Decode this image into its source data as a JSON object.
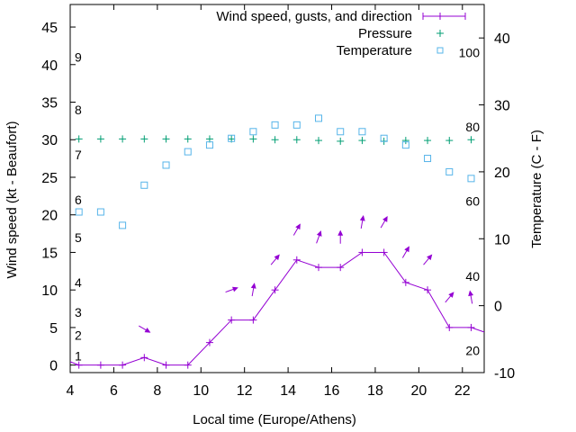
{
  "chart_data": {
    "type": "line",
    "xlabel": "Local time (Europe/Athens)",
    "ylabel": "Wind speed (kt - Beaufort)",
    "y2label": "Temperature (C - F)",
    "xlim": [
      4,
      23
    ],
    "ylim": [
      -1,
      48
    ],
    "y2lim": [
      -10,
      45
    ],
    "x_ticks": [
      4,
      6,
      8,
      10,
      12,
      14,
      16,
      18,
      20,
      22
    ],
    "y_ticks": [
      0,
      5,
      10,
      15,
      20,
      25,
      30,
      35,
      40,
      45
    ],
    "y2_ticks": [
      -10,
      0,
      10,
      20,
      30,
      40
    ],
    "beaufort_labels": [
      {
        "label": "1",
        "kt": 1.2
      },
      {
        "label": "2",
        "kt": 4
      },
      {
        "label": "3",
        "kt": 7
      },
      {
        "label": "4",
        "kt": 11
      },
      {
        "label": "5",
        "kt": 17
      },
      {
        "label": "6",
        "kt": 22
      },
      {
        "label": "7",
        "kt": 28
      },
      {
        "label": "8",
        "kt": 34
      },
      {
        "label": "9",
        "kt": 41
      }
    ],
    "fahrenheit_labels": [
      {
        "label": "20",
        "c": -6.7
      },
      {
        "label": "40",
        "c": 4.4
      },
      {
        "label": "60",
        "c": 15.6
      },
      {
        "label": "80",
        "c": 26.7
      },
      {
        "label": "100",
        "c": 37.8
      }
    ],
    "legend_position": "top-right",
    "grid": false,
    "series": [
      {
        "name": "Wind speed, gusts, and direction",
        "color": "#9400d3",
        "marker": "plus",
        "x": [
          3.5,
          4.4,
          5.4,
          6.4,
          7.4,
          8.4,
          9.4,
          10.4,
          11.4,
          12.4,
          13.4,
          14.4,
          15.4,
          16.4,
          17.4,
          18.4,
          19.4,
          20.4,
          21.4,
          22.4,
          23.4
        ],
        "values": [
          1,
          0,
          0,
          0,
          1,
          0,
          0,
          3,
          6,
          6,
          10,
          14,
          13,
          13,
          15,
          15,
          11,
          10,
          5,
          5,
          4
        ]
      },
      {
        "name": "Pressure",
        "color": "#009e73",
        "marker": "plus",
        "axis": "y",
        "x": [
          4.4,
          5.4,
          6.4,
          7.4,
          8.4,
          9.4,
          10.4,
          11.4,
          12.4,
          13.4,
          14.4,
          15.4,
          16.4,
          17.4,
          18.4,
          19.4,
          20.4,
          21.4,
          22.4
        ],
        "values": [
          30.1,
          30.1,
          30.1,
          30.1,
          30.1,
          30.1,
          30.1,
          30.1,
          30.1,
          30.0,
          30.0,
          29.9,
          29.8,
          29.9,
          29.8,
          29.9,
          29.9,
          29.9,
          30.0
        ]
      },
      {
        "name": "Temperature",
        "color": "#56b4e9",
        "marker": "square",
        "axis": "y2",
        "x": [
          4.4,
          5.4,
          6.4,
          7.4,
          8.4,
          9.4,
          10.4,
          11.4,
          12.4,
          13.4,
          14.4,
          15.4,
          16.4,
          17.4,
          18.4,
          19.4,
          20.4,
          21.4,
          22.4
        ],
        "values": [
          14,
          14,
          12,
          18,
          21,
          23,
          24,
          25,
          26,
          27,
          27,
          28,
          26,
          26,
          25,
          24,
          22,
          20,
          19
        ]
      }
    ],
    "direction_arrows": {
      "color": "#9400d3",
      "x": [
        7.4,
        11.4,
        12.4,
        13.4,
        14.4,
        15.4,
        16.4,
        17.4,
        18.4,
        19.4,
        20.4,
        21.4,
        22.4
      ],
      "kt": [
        4.8,
        10,
        10,
        14,
        18,
        17,
        17,
        19,
        19,
        15,
        14,
        9,
        9
      ],
      "direction_deg": [
        300,
        250,
        190,
        220,
        210,
        200,
        180,
        190,
        210,
        210,
        220,
        220,
        170
      ]
    }
  }
}
